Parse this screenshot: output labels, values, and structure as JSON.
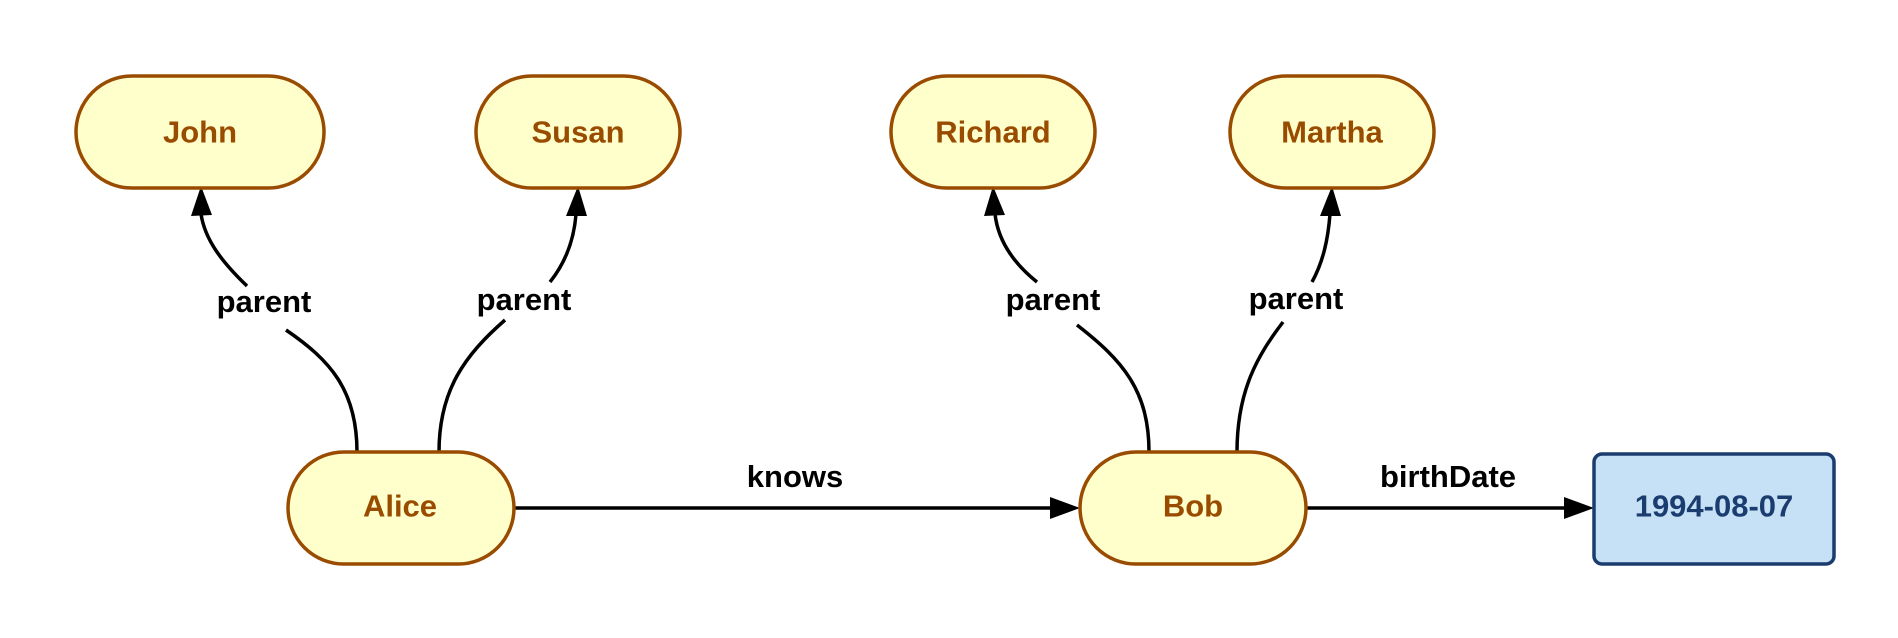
{
  "colors": {
    "resource_fill": "#ffffcc",
    "resource_stroke": "#994c00",
    "resource_text": "#994c00",
    "literal_fill": "#c6e0f5",
    "literal_stroke": "#1a3c6e",
    "literal_text": "#1a3c6e",
    "edge": "#000000"
  },
  "nodes": {
    "john": {
      "label": "John",
      "kind": "resource"
    },
    "susan": {
      "label": "Susan",
      "kind": "resource"
    },
    "richard": {
      "label": "Richard",
      "kind": "resource"
    },
    "martha": {
      "label": "Martha",
      "kind": "resource"
    },
    "alice": {
      "label": "Alice",
      "kind": "resource"
    },
    "bob": {
      "label": "Bob",
      "kind": "resource"
    },
    "birthdate_value": {
      "label": "1994-08-07",
      "kind": "literal"
    }
  },
  "edges": {
    "alice_john": {
      "from": "Alice",
      "to": "John",
      "label": "parent"
    },
    "alice_susan": {
      "from": "Alice",
      "to": "Susan",
      "label": "parent"
    },
    "bob_richard": {
      "from": "Bob",
      "to": "Richard",
      "label": "parent"
    },
    "bob_martha": {
      "from": "Bob",
      "to": "Martha",
      "label": "parent"
    },
    "alice_bob": {
      "from": "Alice",
      "to": "Bob",
      "label": "knows"
    },
    "bob_birthdate": {
      "from": "Bob",
      "to": "1994-08-07",
      "label": "birthDate"
    }
  }
}
